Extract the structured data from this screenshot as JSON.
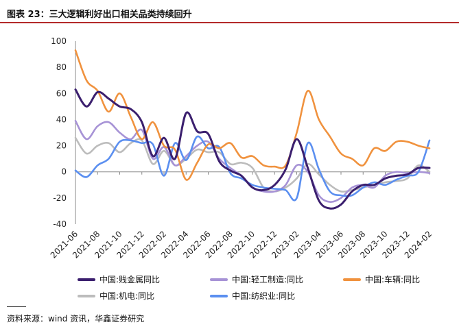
{
  "title": "图表 23：三大逻辑利好出口相关品类持续回升",
  "source": "资料来源：wind 资讯，华鑫证券研究",
  "chart_data": {
    "type": "line",
    "title": "图表 23：三大逻辑利好出口相关品类持续回升",
    "xlabel": "",
    "ylabel": "",
    "ylim": [
      -40,
      100
    ],
    "yticks": [
      -40,
      -20,
      0,
      20,
      40,
      60,
      80,
      100
    ],
    "x": [
      "2021-06",
      "2021-07",
      "2021-08",
      "2021-09",
      "2021-10",
      "2021-11",
      "2021-12",
      "2022-01",
      "2022-02",
      "2022-03",
      "2022-04",
      "2022-05",
      "2022-06",
      "2022-07",
      "2022-08",
      "2022-09",
      "2022-10",
      "2022-11",
      "2022-12",
      "2023-01",
      "2023-02",
      "2023-03",
      "2023-04",
      "2023-05",
      "2023-06",
      "2023-07",
      "2023-08",
      "2023-09",
      "2023-10",
      "2023-11",
      "2023-12",
      "2024-01",
      "2024-02"
    ],
    "xticks": [
      "2021-06",
      "2021-08",
      "2021-10",
      "2021-12",
      "2022-02",
      "2022-04",
      "2022-06",
      "2022-08",
      "2022-10",
      "2022-12",
      "2023-02",
      "2023-04",
      "2023-06",
      "2023-08",
      "2023-10",
      "2023-12",
      "2024-02"
    ],
    "series": [
      {
        "name": "中国:贱金属同比",
        "color": "#3b1f6e",
        "values": [
          63,
          50,
          61,
          56,
          50,
          48,
          38,
          12,
          26,
          10,
          45,
          31,
          29,
          8,
          1,
          -3,
          -12,
          -14,
          -10,
          2,
          25,
          3,
          -22,
          -28,
          -25,
          -15,
          -10,
          -10,
          -5,
          -3,
          -2,
          3,
          3
        ]
      },
      {
        "name": "中国:轻工制造:同比",
        "color": "#a793d6",
        "values": [
          39,
          25,
          35,
          38,
          30,
          25,
          32,
          10,
          19,
          5,
          12,
          20,
          23,
          10,
          3,
          -3,
          -12,
          -15,
          -15,
          -10,
          5,
          0,
          -18,
          -23,
          -20,
          -12,
          -10,
          -12,
          -3,
          0,
          -1,
          0,
          -1
        ]
      },
      {
        "name": "中国:车辆:同比",
        "color": "#f0923e",
        "values": [
          93,
          70,
          62,
          46,
          60,
          42,
          25,
          38,
          20,
          17,
          -6,
          7,
          21,
          18,
          22,
          11,
          12,
          5,
          4,
          5,
          30,
          62,
          40,
          27,
          14,
          10,
          5,
          18,
          16,
          23,
          23,
          20,
          18
        ]
      },
      {
        "name": "中国:机电:同比",
        "color": "#bcbcbc",
        "values": [
          26,
          14,
          20,
          22,
          15,
          22,
          24,
          6,
          16,
          5,
          10,
          17,
          15,
          15,
          6,
          7,
          3,
          -12,
          -15,
          -12,
          -5,
          6,
          -2,
          -10,
          -15,
          -14,
          -12,
          -10,
          -8,
          -7,
          -5,
          5,
          0
        ]
      },
      {
        "name": "中国:纺织业:同比",
        "color": "#5b8ff0",
        "values": [
          1,
          -4,
          5,
          10,
          23,
          24,
          22,
          21,
          -3,
          22,
          9,
          27,
          18,
          19,
          -1,
          -5,
          -10,
          -12,
          -13,
          -14,
          -20,
          22,
          2,
          -15,
          -18,
          -18,
          -12,
          -8,
          -10,
          -6,
          -3,
          0,
          24
        ]
      }
    ],
    "legend": "bottom"
  }
}
